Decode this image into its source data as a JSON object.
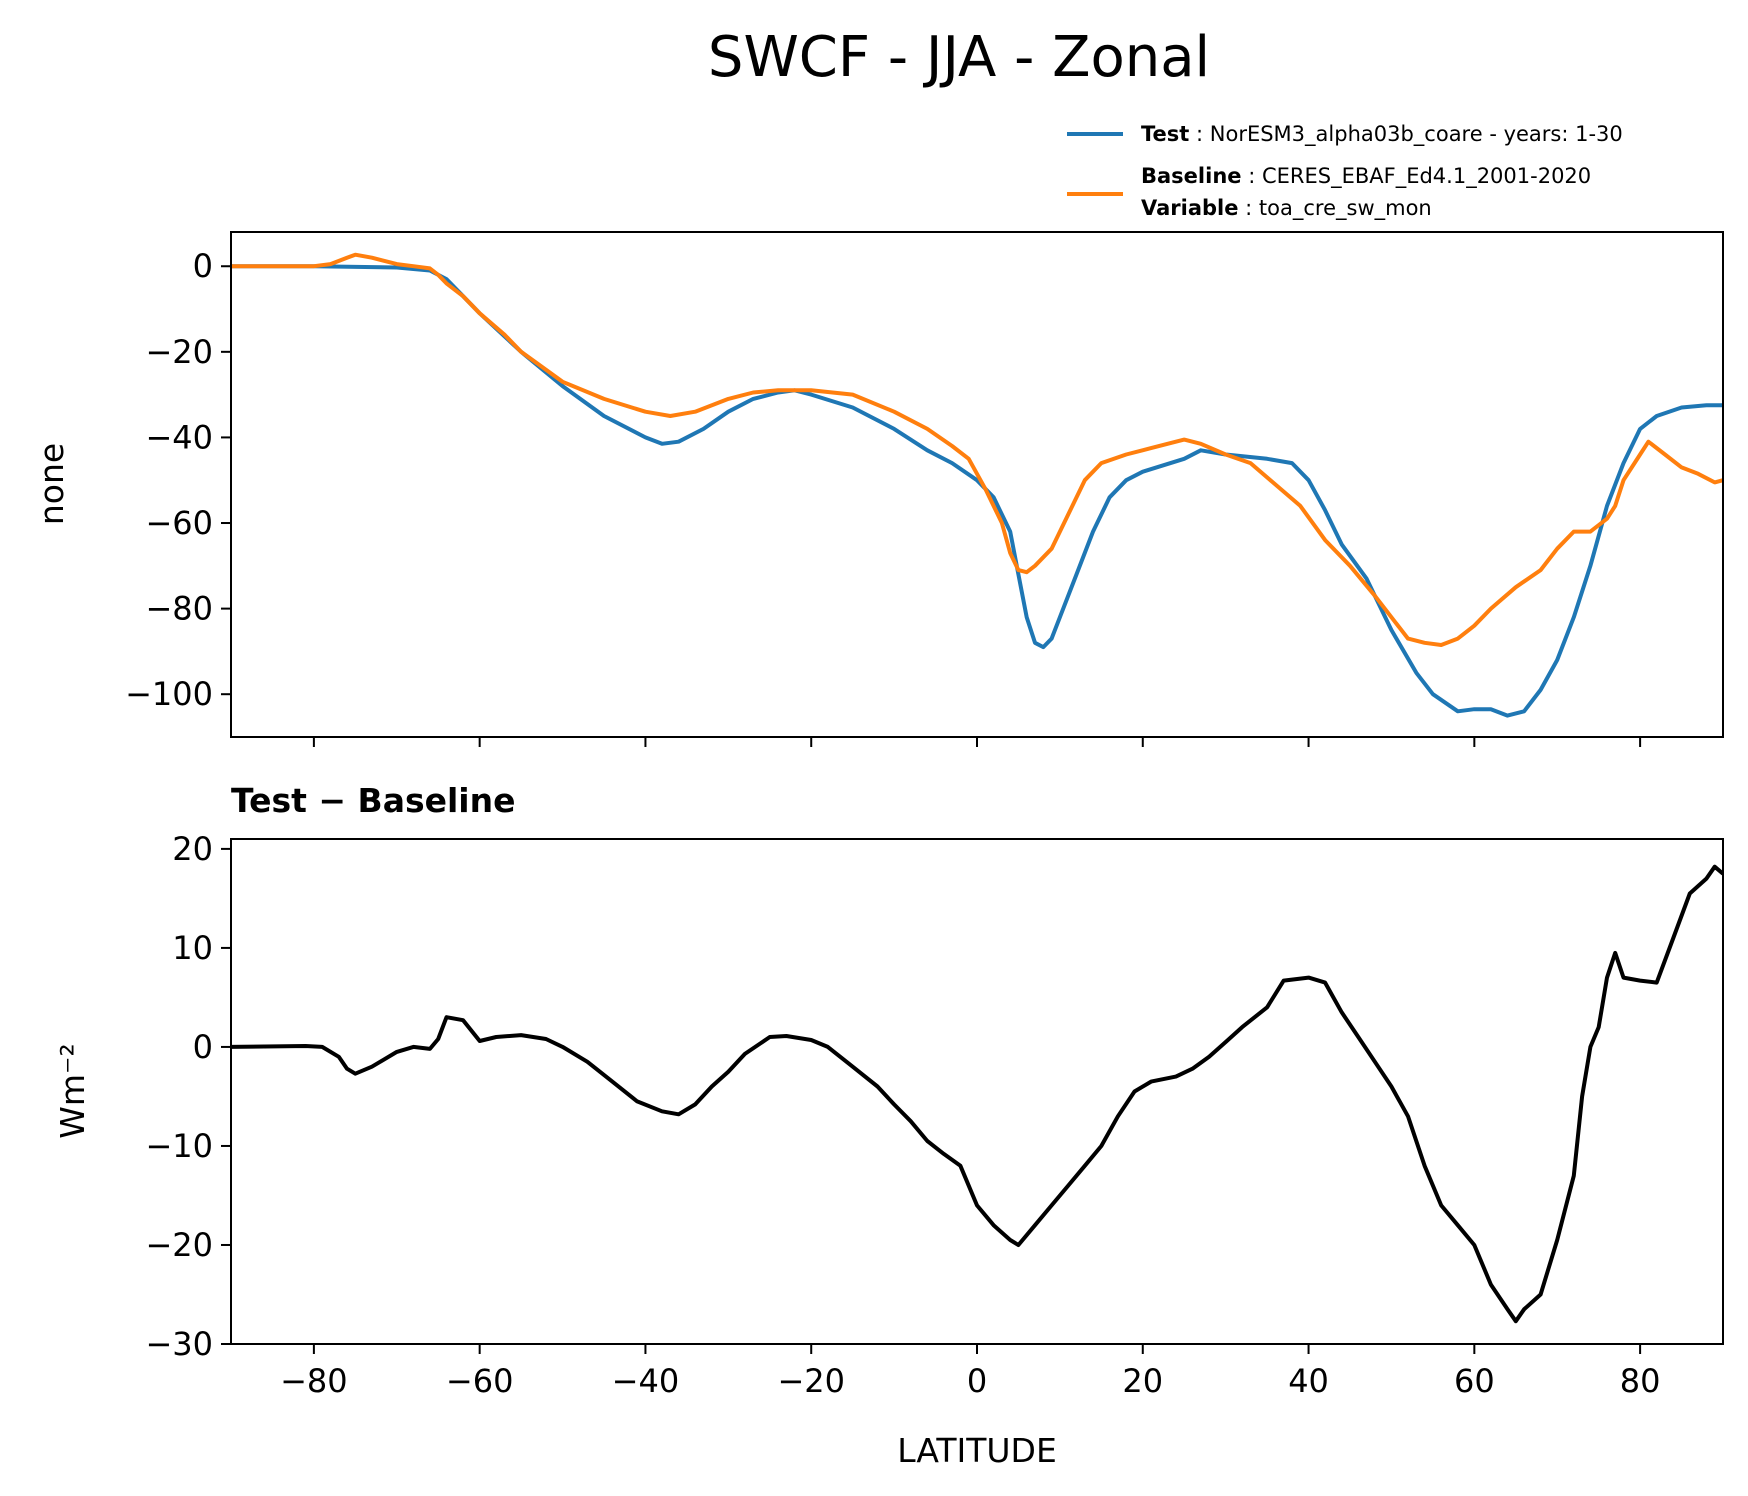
{
  "chart_data": [
    {
      "type": "line",
      "title": "SWCF - JJA - Zonal",
      "xlabel": "",
      "ylabel": "none",
      "xlim": [
        -90,
        90
      ],
      "ylim": [
        -110,
        8
      ],
      "xticks": [
        -80,
        -60,
        -40,
        -20,
        0,
        20,
        40,
        60,
        80
      ],
      "yticks": [
        0,
        -20,
        -40,
        -60,
        -80,
        -100
      ],
      "ytick_labels": [
        "0",
        "−20",
        "−40",
        "−60",
        "−80",
        "−100"
      ],
      "legend": {
        "location": "upper-right",
        "entries": [
          {
            "color": "#1f77b4",
            "lines": [
              {
                "key": "Test",
                "sep": " : ",
                "text": "NorESM3_alpha03b_coare - years: 1-30"
              }
            ]
          },
          {
            "color": "#ff7f0e",
            "lines": [
              {
                "key": "Baseline",
                "sep": " : ",
                "text": "CERES_EBAF_Ed4.1_2001-2020"
              },
              {
                "key": "Variable",
                "sep": " : ",
                "text": "toa_cre_sw_mon"
              }
            ]
          }
        ]
      },
      "series": [
        {
          "name": "Test",
          "color": "#1f77b4",
          "points": [
            [
              -90,
              0
            ],
            [
              -80,
              0
            ],
            [
              -70,
              -0.3
            ],
            [
              -66,
              -1
            ],
            [
              -64,
              -3
            ],
            [
              -62,
              -7
            ],
            [
              -60,
              -11
            ],
            [
              -55,
              -20
            ],
            [
              -50,
              -28
            ],
            [
              -45,
              -35
            ],
            [
              -40,
              -40
            ],
            [
              -38,
              -41.5
            ],
            [
              -36,
              -41
            ],
            [
              -33,
              -38
            ],
            [
              -30,
              -34
            ],
            [
              -27,
              -31
            ],
            [
              -24,
              -29.5
            ],
            [
              -22,
              -29
            ],
            [
              -20,
              -30
            ],
            [
              -15,
              -33
            ],
            [
              -10,
              -38
            ],
            [
              -6,
              -43
            ],
            [
              -3,
              -46
            ],
            [
              0,
              -50
            ],
            [
              2,
              -54
            ],
            [
              4,
              -62
            ],
            [
              5,
              -72
            ],
            [
              6,
              -82
            ],
            [
              7,
              -88
            ],
            [
              8,
              -89
            ],
            [
              9,
              -87
            ],
            [
              10,
              -82
            ],
            [
              12,
              -72
            ],
            [
              14,
              -62
            ],
            [
              16,
              -54
            ],
            [
              18,
              -50
            ],
            [
              20,
              -48
            ],
            [
              25,
              -45
            ],
            [
              27,
              -43
            ],
            [
              30,
              -44
            ],
            [
              35,
              -45
            ],
            [
              38,
              -46
            ],
            [
              40,
              -50
            ],
            [
              42,
              -57
            ],
            [
              44,
              -65
            ],
            [
              47,
              -73
            ],
            [
              50,
              -85
            ],
            [
              53,
              -95
            ],
            [
              55,
              -100
            ],
            [
              58,
              -104
            ],
            [
              60,
              -103.5
            ],
            [
              62,
              -103.5
            ],
            [
              64,
              -105
            ],
            [
              66,
              -104
            ],
            [
              68,
              -99
            ],
            [
              70,
              -92
            ],
            [
              72,
              -82
            ],
            [
              74,
              -70
            ],
            [
              76,
              -56
            ],
            [
              78,
              -46
            ],
            [
              80,
              -38
            ],
            [
              82,
              -35
            ],
            [
              85,
              -33
            ],
            [
              88,
              -32.5
            ],
            [
              90,
              -32.5
            ]
          ]
        },
        {
          "name": "Baseline",
          "color": "#ff7f0e",
          "points": [
            [
              -90,
              0
            ],
            [
              -80,
              0
            ],
            [
              -78,
              0.5
            ],
            [
              -76,
              2
            ],
            [
              -75,
              2.7
            ],
            [
              -73,
              2
            ],
            [
              -70,
              0.5
            ],
            [
              -68,
              0
            ],
            [
              -66,
              -0.5
            ],
            [
              -65,
              -2
            ],
            [
              -64,
              -4
            ],
            [
              -62,
              -7
            ],
            [
              -60,
              -11
            ],
            [
              -57,
              -16
            ],
            [
              -55,
              -20
            ],
            [
              -50,
              -27
            ],
            [
              -45,
              -31
            ],
            [
              -40,
              -34
            ],
            [
              -37,
              -35
            ],
            [
              -34,
              -34
            ],
            [
              -30,
              -31
            ],
            [
              -27,
              -29.5
            ],
            [
              -24,
              -29
            ],
            [
              -20,
              -29
            ],
            [
              -15,
              -30
            ],
            [
              -10,
              -34
            ],
            [
              -6,
              -38
            ],
            [
              -3,
              -42
            ],
            [
              -1,
              -45
            ],
            [
              1,
              -52
            ],
            [
              3,
              -60
            ],
            [
              4,
              -67
            ],
            [
              5,
              -71
            ],
            [
              6,
              -71.5
            ],
            [
              7,
              -70
            ],
            [
              9,
              -66
            ],
            [
              11,
              -58
            ],
            [
              13,
              -50
            ],
            [
              15,
              -46
            ],
            [
              18,
              -44
            ],
            [
              21,
              -42.5
            ],
            [
              23,
              -41.5
            ],
            [
              25,
              -40.5
            ],
            [
              27,
              -41.5
            ],
            [
              30,
              -44
            ],
            [
              33,
              -46
            ],
            [
              36,
              -51
            ],
            [
              39,
              -56
            ],
            [
              42,
              -64
            ],
            [
              45,
              -70
            ],
            [
              48,
              -77
            ],
            [
              50,
              -82
            ],
            [
              52,
              -87
            ],
            [
              54,
              -88
            ],
            [
              56,
              -88.5
            ],
            [
              58,
              -87
            ],
            [
              60,
              -84
            ],
            [
              62,
              -80
            ],
            [
              65,
              -75
            ],
            [
              68,
              -71
            ],
            [
              70,
              -66
            ],
            [
              72,
              -62
            ],
            [
              74,
              -62
            ],
            [
              76,
              -59
            ],
            [
              77,
              -56
            ],
            [
              78,
              -50
            ],
            [
              80,
              -44
            ],
            [
              81,
              -41
            ],
            [
              83,
              -44
            ],
            [
              85,
              -47
            ],
            [
              87,
              -48.5
            ],
            [
              89,
              -50.5
            ],
            [
              90,
              -50
            ]
          ]
        }
      ]
    },
    {
      "type": "line",
      "title": "Test − Baseline",
      "xlabel": "LATITUDE",
      "ylabel": "Wm⁻²",
      "xlim": [
        -90,
        90
      ],
      "ylim": [
        -30,
        21
      ],
      "xticks": [
        -80,
        -60,
        -40,
        -20,
        0,
        20,
        40,
        60,
        80
      ],
      "xtick_labels": [
        "−80",
        "−60",
        "−40",
        "−20",
        "0",
        "20",
        "40",
        "60",
        "80"
      ],
      "yticks": [
        20,
        10,
        0,
        -10,
        -20,
        -30
      ],
      "ytick_labels": [
        "20",
        "10",
        "0",
        "−10",
        "−20",
        "−30"
      ],
      "series": [
        {
          "name": "Test − Baseline",
          "color": "#000000",
          "points": [
            [
              -90,
              0
            ],
            [
              -81,
              0.1
            ],
            [
              -79,
              0
            ],
            [
              -77,
              -1
            ],
            [
              -76,
              -2.2
            ],
            [
              -75,
              -2.7
            ],
            [
              -73,
              -2
            ],
            [
              -70,
              -0.5
            ],
            [
              -68,
              0
            ],
            [
              -66,
              -0.2
            ],
            [
              -65,
              0.8
            ],
            [
              -64,
              3
            ],
            [
              -62,
              2.7
            ],
            [
              -60,
              0.6
            ],
            [
              -58,
              1
            ],
            [
              -55,
              1.2
            ],
            [
              -52,
              0.8
            ],
            [
              -50,
              0
            ],
            [
              -47,
              -1.5
            ],
            [
              -44,
              -3.5
            ],
            [
              -41,
              -5.5
            ],
            [
              -38,
              -6.5
            ],
            [
              -36,
              -6.8
            ],
            [
              -34,
              -5.8
            ],
            [
              -32,
              -4
            ],
            [
              -30,
              -2.5
            ],
            [
              -28,
              -0.7
            ],
            [
              -25,
              1
            ],
            [
              -23,
              1.1
            ],
            [
              -20,
              0.7
            ],
            [
              -18,
              0
            ],
            [
              -15,
              -2
            ],
            [
              -12,
              -4
            ],
            [
              -10,
              -5.8
            ],
            [
              -8,
              -7.5
            ],
            [
              -6,
              -9.5
            ],
            [
              -4,
              -10.8
            ],
            [
              -2,
              -12
            ],
            [
              0,
              -16
            ],
            [
              2,
              -18
            ],
            [
              4,
              -19.5
            ],
            [
              5,
              -20
            ],
            [
              7,
              -18
            ],
            [
              9,
              -16
            ],
            [
              11,
              -14
            ],
            [
              13,
              -12
            ],
            [
              15,
              -10
            ],
            [
              17,
              -7
            ],
            [
              19,
              -4.5
            ],
            [
              21,
              -3.5
            ],
            [
              24,
              -3
            ],
            [
              26,
              -2.2
            ],
            [
              28,
              -1
            ],
            [
              30,
              0.5
            ],
            [
              32,
              2
            ],
            [
              35,
              4
            ],
            [
              37,
              6.7
            ],
            [
              40,
              7
            ],
            [
              42,
              6.5
            ],
            [
              44,
              3.5
            ],
            [
              46,
              1
            ],
            [
              48,
              -1.5
            ],
            [
              50,
              -4
            ],
            [
              52,
              -7
            ],
            [
              54,
              -12
            ],
            [
              56,
              -16
            ],
            [
              58,
              -18
            ],
            [
              60,
              -20
            ],
            [
              62,
              -24
            ],
            [
              64,
              -26.5
            ],
            [
              65,
              -27.7
            ],
            [
              66,
              -26.5
            ],
            [
              68,
              -25
            ],
            [
              70,
              -19.5
            ],
            [
              72,
              -13
            ],
            [
              73,
              -5
            ],
            [
              74,
              0
            ],
            [
              75,
              2
            ],
            [
              76,
              7
            ],
            [
              77,
              9.5
            ],
            [
              78,
              7
            ],
            [
              80,
              6.7
            ],
            [
              82,
              6.5
            ],
            [
              84,
              11
            ],
            [
              86,
              15.5
            ],
            [
              88,
              17
            ],
            [
              89,
              18.2
            ],
            [
              90,
              17.5
            ]
          ]
        }
      ]
    }
  ]
}
